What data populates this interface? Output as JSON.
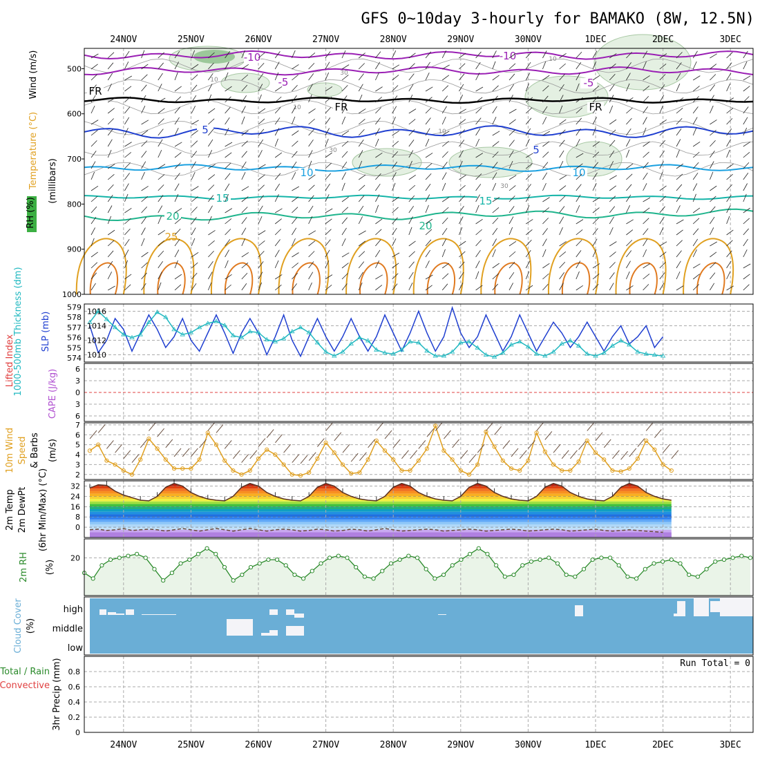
{
  "title": "GFS 0~10day 3-hourly for BAMAKO (8W, 12.5N)",
  "date_labels": [
    "24NOV",
    "25NOV",
    "26NOV",
    "27NOV",
    "28NOV",
    "29NOV",
    "30NOV",
    "1DEC",
    "2DEC",
    "3DEC"
  ],
  "colors": {
    "purple": "#9a1fb4",
    "blue": "#1f3fd0",
    "lightblue": "#1aa0e0",
    "teal": "#14b4a8",
    "green": "#1eb48c",
    "orange": "#e0a020",
    "darkorange": "#e07a20",
    "cyan": "#20b8c0",
    "cloudblue": "#6aaed6",
    "rhfill": "#eaf4e8",
    "rhgreen": "#2a8a2a"
  },
  "chart_data": [
    {
      "type": "contour",
      "panel": "upper-air",
      "ylabels": [
        "Wind (m/s)",
        "Temperature (°C)",
        "RH (%)",
        "(millibars)"
      ],
      "yticks": [
        500,
        600,
        700,
        800,
        900,
        1000
      ],
      "temperature_contours": [
        {
          "label": "-10",
          "values": [
            -10
          ]
        },
        {
          "label": "-5",
          "values": [
            -5
          ]
        },
        {
          "label": "FR",
          "values": [
            0
          ]
        },
        {
          "label": "5",
          "values": [
            5
          ]
        },
        {
          "label": "10",
          "values": [
            10
          ]
        },
        {
          "label": "15",
          "values": [
            15
          ]
        },
        {
          "label": "20",
          "values": [
            20
          ]
        },
        {
          "label": "25",
          "values": [
            25
          ]
        }
      ],
      "rh_labels": [
        "10",
        "30"
      ]
    },
    {
      "type": "line",
      "panel": "thickness-slp",
      "ylabels": [
        "1000-500mb Thickness (dm)",
        "SLP (mb)"
      ],
      "left_ticks": [
        "579",
        "578",
        "577",
        "576",
        "575",
        "574"
      ],
      "right_ticks": [
        "1016",
        "1014",
        "1012",
        "1010"
      ],
      "series": [
        {
          "name": "SLP (mb)",
          "values": [
            1014,
            1010.3,
            1012,
            1015,
            1013.5,
            1010.5,
            1013,
            1015.5,
            1013.5,
            1011,
            1012.5,
            1015,
            1012,
            1010.5,
            1013,
            1015.5,
            1013,
            1010.2,
            1013,
            1015,
            1013,
            1010,
            1012.5,
            1015.5,
            1012,
            1009.8,
            1012.5,
            1015,
            1012.5,
            1010.5,
            1012.5,
            1015,
            1012.5,
            1010.5,
            1012.5,
            1015.5,
            1013,
            1010.5,
            1013,
            1016,
            1013,
            1010.5,
            1012.5,
            1016.5,
            1013,
            1011,
            1012.5,
            1015.5,
            1013,
            1010.5,
            1012.5,
            1015.5,
            1013,
            1010.5,
            1012.5,
            1014.5,
            1013,
            1011,
            1012.5,
            1014.5,
            1012.5,
            1010.5,
            1012.5,
            1014,
            1011.5,
            1012.5,
            1014,
            1011,
            1012.5
          ]
        },
        {
          "name": "Thickness (dm)",
          "values": [
            577.5,
            578.6,
            577.8,
            577,
            576.3,
            576,
            576.3,
            577.5,
            578.5,
            578,
            576.8,
            576.3,
            576.5,
            577,
            577.4,
            577.6,
            577.2,
            576.2,
            576,
            576.6,
            576.5,
            575.8,
            575.6,
            575.9,
            576.6,
            577,
            576.5,
            575.5,
            574.6,
            574.2,
            574.6,
            575.4,
            576,
            575.7,
            574.8,
            574.5,
            574.4,
            574.8,
            575.6,
            575.5,
            574.7,
            574.2,
            574.2,
            574.6,
            575.5,
            575.6,
            575,
            574.3,
            574.1,
            574.5,
            575.3,
            575.6,
            575.1,
            574.4,
            574.2,
            574.6,
            575.4,
            575.7,
            575.2,
            574.4,
            574.2,
            574.5,
            575.2,
            575.7,
            575.3,
            574.6,
            574.4,
            574.3,
            574.2
          ]
        }
      ]
    },
    {
      "type": "line",
      "panel": "lifted-cape",
      "ylabels": [
        "Lifted Index",
        "CAPE (J/kg)"
      ],
      "yticks": [
        "6",
        "3",
        "0",
        "3",
        "6"
      ],
      "lifted_index_zero_line": 0
    },
    {
      "type": "line",
      "panel": "wind10m",
      "ylabels": [
        "10m Wind",
        "Speed",
        "& Barbs",
        "(m/s)"
      ],
      "yticks": [
        "7",
        "6",
        "5",
        "4",
        "3",
        "2"
      ],
      "series": [
        {
          "name": "10m Wind Speed (m/s)",
          "values": [
            4.4,
            5,
            3.4,
            3,
            2.4,
            2,
            3.5,
            5.6,
            4.6,
            3.5,
            2.6,
            2.6,
            2.6,
            3.5,
            6.2,
            5,
            3.4,
            2.4,
            2,
            2.4,
            3.6,
            4.5,
            4,
            3,
            2,
            1.9,
            2.2,
            3.6,
            5.2,
            4.2,
            3,
            2.1,
            2.2,
            3.5,
            5.4,
            4.4,
            3.5,
            2.4,
            2.4,
            3.4,
            4.6,
            6.9,
            4.4,
            3.5,
            2.4,
            2,
            3,
            6.3,
            4.8,
            3.4,
            2.6,
            2.4,
            3.4,
            6.2,
            4.3,
            3,
            2.4,
            2.4,
            3.3,
            5.4,
            4.2,
            3.5,
            2.4,
            2.3,
            2.6,
            3.6,
            5.4,
            4.5,
            3,
            2.4
          ]
        }
      ]
    },
    {
      "type": "area",
      "panel": "temp2m",
      "ylabels": [
        "2m Temp",
        "2m DewPt",
        "(6hr Min/Max) (°C)"
      ],
      "yticks": [
        "32",
        "24",
        "16",
        "8",
        "0"
      ],
      "series": [
        {
          "name": "2m Temp (°C)",
          "values": [
            30.5,
            33,
            32.5,
            28,
            25,
            23,
            21,
            20.5,
            24,
            31,
            34,
            32,
            27,
            24,
            22,
            21,
            20.5,
            24,
            31,
            34,
            32,
            27,
            24,
            22,
            21,
            20.5,
            24,
            31,
            34,
            32,
            27,
            24,
            22,
            21,
            20.5,
            24,
            31,
            34,
            32,
            27,
            24,
            22,
            21,
            20.5,
            24,
            31,
            34,
            32,
            27,
            24,
            22,
            21,
            20.5,
            24,
            31,
            34,
            32,
            27,
            24,
            22,
            21,
            20.5,
            24,
            31,
            34,
            32,
            27,
            24,
            22,
            21
          ]
        },
        {
          "name": "2m DewPt (°C)",
          "values": [
            -2,
            -1.5,
            -2.5,
            -2,
            -1,
            -2.5,
            -2,
            -1.5,
            -2,
            -3,
            -2,
            -1,
            -2,
            -3,
            -2,
            -1,
            -2,
            -3,
            -2,
            -1,
            -2,
            -3,
            -2,
            -1.5,
            -2,
            -3,
            -2.5,
            -1.5,
            -2,
            -3,
            -2.5,
            -1.5,
            -2,
            -3,
            -2,
            -1,
            -2,
            -3,
            -2.5,
            -2,
            -1.5,
            -2,
            -3,
            -2.5,
            -2,
            -1.5,
            -2,
            -3,
            -2.5,
            -2,
            -1.5,
            -2,
            -3,
            -2.5,
            -2,
            -1.5,
            -2,
            -3,
            -2.5,
            -2,
            -1.5,
            -2.5,
            -3,
            -2.5,
            -2,
            -2.5,
            -3,
            -3.5,
            -4
          ]
        }
      ]
    },
    {
      "type": "area",
      "panel": "rh2m",
      "ylabels": [
        "2m RH",
        "(%)"
      ],
      "yticks": [
        "20"
      ],
      "series": [
        {
          "name": "2m RH (%)",
          "values": [
            12,
            9,
            16,
            19,
            20,
            21,
            22,
            20,
            14,
            8,
            12,
            17,
            19,
            22,
            25,
            22,
            15,
            8,
            11,
            15,
            17,
            19,
            19,
            16,
            11,
            9,
            13,
            17,
            20,
            21,
            20,
            15,
            10,
            9,
            13,
            17,
            19,
            21,
            20,
            14,
            9,
            11,
            16,
            19,
            22,
            25,
            22,
            16,
            10,
            11,
            16,
            18,
            19,
            20,
            17,
            11,
            10,
            14,
            19,
            20,
            20,
            16,
            10,
            9,
            14,
            17,
            18,
            19,
            17,
            11,
            10,
            14,
            18,
            19,
            20,
            21,
            20
          ]
        }
      ]
    },
    {
      "type": "heatmap",
      "panel": "cloud",
      "ylabels": [
        "Cloud Cover",
        "(%)"
      ],
      "yticks": [
        "high",
        "middle",
        "low"
      ]
    },
    {
      "type": "bar",
      "panel": "precip",
      "ylabels": [
        "Total / Rain",
        "Convective",
        "3hr Precip (mm)"
      ],
      "yticks": [
        "0.8",
        "0.6",
        "0.4",
        "0.2",
        "0"
      ],
      "annotation": "Run Total = 0",
      "values": []
    }
  ]
}
